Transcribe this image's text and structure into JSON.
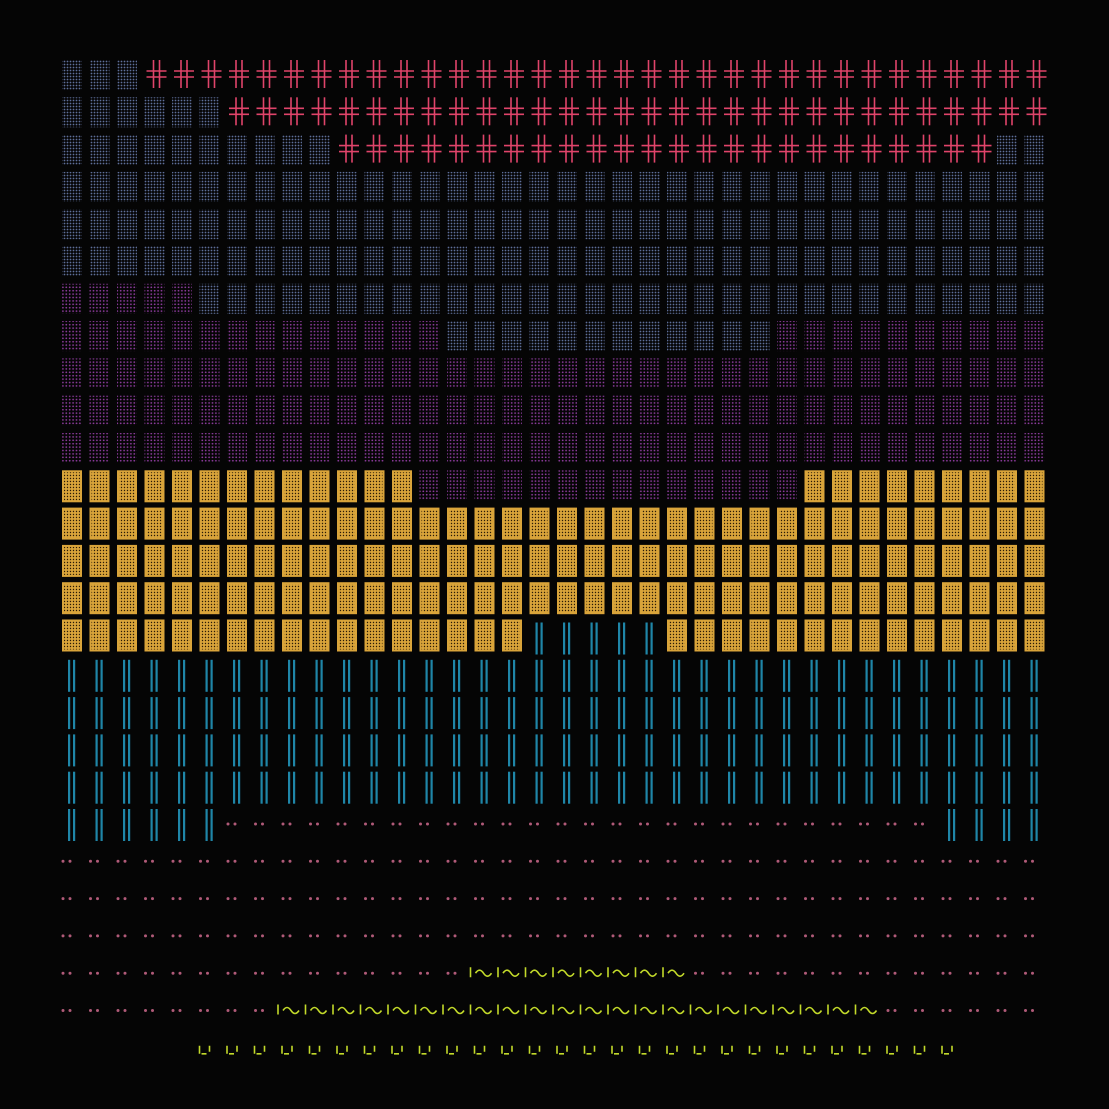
{
  "background": "#050505",
  "palette": {
    "red_cross": "#e0446a",
    "slate_dot": "#5e6f9a",
    "violet_dot": "#8a3a9a",
    "gold_tile": "#d9a43a",
    "teal_bar": "#1f86a8",
    "pink_dot": "#b05a78",
    "lime_wave": "#c2d92a"
  },
  "grid": {
    "cols": 36,
    "row_order": [
      "red_cross",
      "red_cross",
      "red_cross",
      "slate_dot",
      "slate_dot",
      "slate_dot",
      "violet_dot",
      "violet_dot",
      "violet_dot",
      "violet_dot",
      "violet_dot",
      "gold_tile",
      "gold_tile",
      "gold_tile",
      "gold_tile",
      "gold_tile",
      "teal_bar",
      "teal_bar",
      "teal_bar",
      "teal_bar",
      "teal_bar",
      "pink_dot",
      "pink_dot",
      "pink_dot",
      "pink_dot",
      "pink_dot",
      "lime_wave"
    ]
  }
}
